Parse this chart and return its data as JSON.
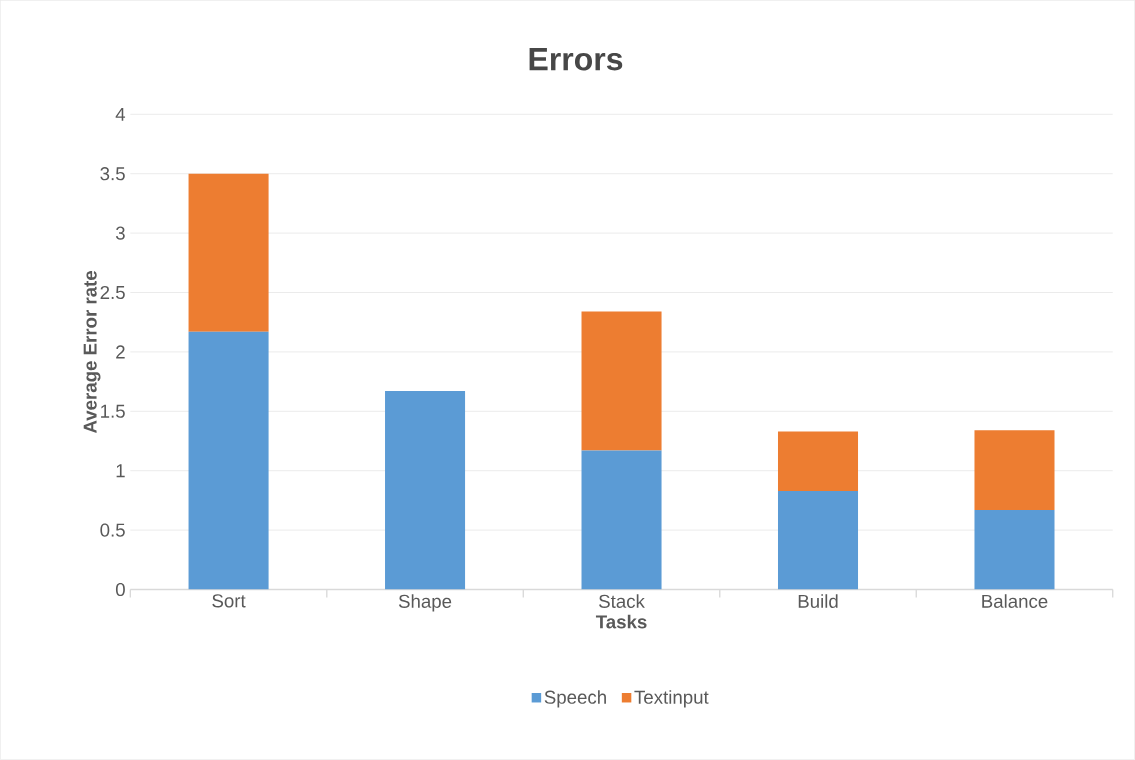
{
  "chart_data": {
    "type": "bar",
    "stacked": true,
    "title": "Errors",
    "xlabel": "Tasks",
    "ylabel": "Average Error rate",
    "categories": [
      "Sort",
      "Shape",
      "Stack",
      "Build",
      "Balance"
    ],
    "series": [
      {
        "name": "Speech",
        "color": "#5b9bd5",
        "values": [
          2.17,
          1.67,
          1.17,
          0.83,
          0.67
        ]
      },
      {
        "name": "Textinput",
        "color": "#ed7d31",
        "values": [
          1.33,
          0,
          1.17,
          0.5,
          0.67
        ]
      }
    ],
    "ylim": [
      0,
      4
    ],
    "yticks": [
      0,
      0.5,
      1,
      1.5,
      2,
      2.5,
      3,
      3.5,
      4
    ],
    "grid": "y",
    "legend": "bottom"
  }
}
